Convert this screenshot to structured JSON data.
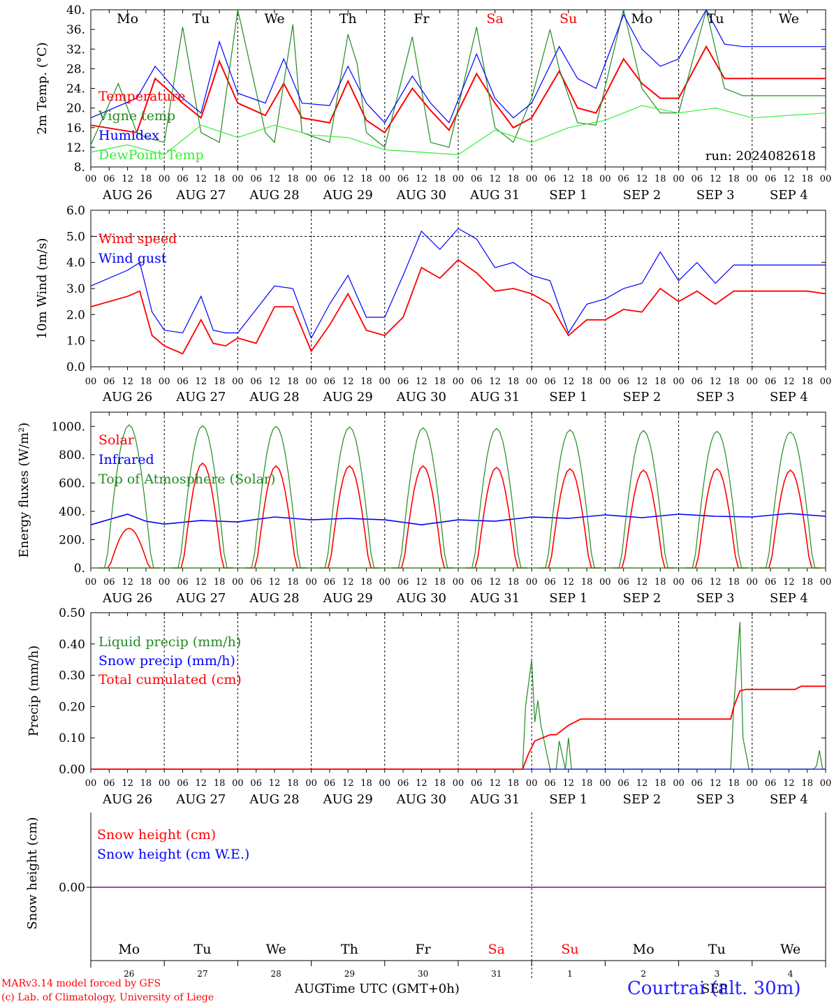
{
  "footer": {
    "credit_line1": "MARv3.14 model forced by GFS",
    "credit_line2": "(c) Lab. of Climatology, University of Liege",
    "x_axis_title": "Time UTC (GMT+0h)",
    "month_left": "AUG",
    "month_right": "SEP",
    "station": "Courtrai (alt. 30m)"
  },
  "chart_data": [
    {
      "type": "line",
      "title": "",
      "ylabel": "2m Temp. (°C)",
      "ylim": [
        8,
        40
      ],
      "yticks": [
        "8.",
        "12.",
        "16.",
        "20.",
        "24.",
        "28.",
        "32.",
        "36.",
        "40."
      ],
      "day_labels": [
        "Mo",
        "Tu",
        "We",
        "Th",
        "Fr",
        "Sa",
        "Su",
        "Mo",
        "Tu",
        "We"
      ],
      "weekend_color": "#ff0000",
      "date_labels": [
        "AUG 26",
        "AUG 27",
        "AUG 28",
        "AUG 29",
        "AUG 30",
        "AUG 31",
        "SEP  1",
        "SEP  2",
        "SEP  3",
        "SEP  4"
      ],
      "hour_ticks": [
        "00",
        "06",
        "12",
        "18"
      ],
      "annotation": "run: 2024082618",
      "x_unit": "hours since AUG 26 00 UTC",
      "series": [
        {
          "name": "Temperature",
          "color": "#ff0000",
          "x": [
            0,
            15,
            21,
            30,
            36,
            42,
            48,
            57,
            63,
            69,
            78,
            84,
            90,
            96,
            105,
            111,
            117,
            126,
            132,
            138,
            144,
            153,
            159,
            165,
            174,
            180,
            186,
            192,
            201,
            207,
            213,
            222,
            228,
            234,
            240
          ],
          "values": [
            16.5,
            15,
            26,
            21,
            18,
            29.5,
            21,
            18.5,
            25,
            18,
            17,
            25.5,
            17.5,
            15,
            24,
            19.5,
            15.5,
            27,
            21,
            16,
            18,
            27.5,
            20,
            19,
            30,
            25,
            22,
            22,
            32.5,
            26,
            26,
            26,
            26,
            26,
            26
          ]
        },
        {
          "name": "Vigne temp",
          "color": "#228b22",
          "x": [
            0,
            9,
            15,
            18,
            24,
            30,
            36,
            42,
            48,
            57,
            60,
            66,
            69,
            78,
            84,
            87,
            90,
            96,
            105,
            111,
            117,
            126,
            132,
            138,
            144,
            150,
            153,
            159,
            165,
            174,
            180,
            186,
            192,
            201,
            207,
            213,
            222,
            228,
            234,
            240
          ],
          "values": [
            12.5,
            25,
            15,
            14,
            13,
            36.5,
            15,
            13,
            40,
            15,
            13,
            37,
            15,
            13,
            35,
            29,
            15,
            12,
            34.5,
            13,
            12,
            36.5,
            16,
            13,
            22,
            36,
            28,
            17,
            16.5,
            40,
            24,
            19,
            19,
            40,
            24,
            22.5,
            22.5,
            22.5,
            22.5,
            22.5
          ]
        },
        {
          "name": "Humidex",
          "color": "#0000ff",
          "x": [
            0,
            15,
            21,
            30,
            36,
            42,
            48,
            57,
            63,
            69,
            78,
            84,
            90,
            96,
            105,
            111,
            117,
            126,
            132,
            138,
            144,
            153,
            159,
            165,
            174,
            180,
            186,
            192,
            201,
            207,
            213,
            222,
            228,
            234,
            240
          ],
          "values": [
            18,
            22,
            28.5,
            22,
            19,
            33.5,
            23,
            21,
            30,
            21,
            20.5,
            28.5,
            21,
            17,
            26.5,
            21,
            17,
            31,
            22,
            18,
            21,
            32.5,
            26,
            24,
            39,
            32,
            28.5,
            30,
            40,
            33,
            32.5,
            32.5,
            32.5,
            32.5,
            32.5
          ]
        },
        {
          "name": "DewPoint Temp",
          "color": "#33ee33",
          "x": [
            0,
            12,
            24,
            36,
            48,
            60,
            72,
            84,
            96,
            108,
            120,
            132,
            144,
            156,
            168,
            180,
            192,
            204,
            216,
            228,
            240
          ],
          "values": [
            11,
            12.5,
            10.5,
            16.5,
            14,
            16.5,
            14.5,
            14,
            11.5,
            11,
            10.5,
            15.5,
            13,
            16,
            17.5,
            20.5,
            19,
            20,
            18,
            18.5,
            19
          ]
        }
      ]
    },
    {
      "type": "line",
      "title": "",
      "ylabel": "10m Wind (m/s)",
      "ylim": [
        0,
        6
      ],
      "yticks": [
        "0.0",
        "1.0",
        "2.0",
        "3.0",
        "4.0",
        "5.0",
        "6.0"
      ],
      "date_labels": [
        "AUG 26",
        "AUG 27",
        "AUG 28",
        "AUG 29",
        "AUG 30",
        "AUG 31",
        "SEP  1",
        "SEP  2",
        "SEP  3",
        "SEP  4"
      ],
      "hour_ticks": [
        "00",
        "06",
        "12",
        "18"
      ],
      "reference_line": 5.0,
      "x_unit": "hours since AUG 26 00 UTC",
      "series": [
        {
          "name": "Wind speed",
          "color": "#ff0000",
          "x": [
            0,
            12,
            16,
            20,
            24,
            30,
            36,
            40,
            44,
            48,
            54,
            60,
            66,
            72,
            78,
            84,
            90,
            96,
            102,
            108,
            114,
            120,
            126,
            132,
            138,
            144,
            150,
            156,
            162,
            168,
            174,
            180,
            186,
            192,
            198,
            204,
            210,
            216,
            222,
            228,
            234,
            240
          ],
          "values": [
            2.3,
            2.7,
            2.9,
            1.2,
            0.8,
            0.5,
            1.8,
            0.9,
            0.8,
            1.1,
            0.9,
            2.3,
            2.3,
            0.6,
            1.6,
            2.8,
            1.4,
            1.2,
            1.9,
            3.8,
            3.4,
            4.1,
            3.6,
            2.9,
            3.0,
            2.8,
            2.4,
            1.2,
            1.8,
            1.8,
            2.2,
            2.1,
            3.0,
            2.5,
            2.9,
            2.4,
            2.9,
            2.9,
            2.9,
            2.9,
            2.9,
            2.8
          ]
        },
        {
          "name": "Wind gust",
          "color": "#0000ff",
          "x": [
            0,
            12,
            16,
            20,
            24,
            30,
            36,
            40,
            44,
            48,
            54,
            60,
            66,
            72,
            78,
            84,
            90,
            96,
            102,
            108,
            114,
            120,
            126,
            132,
            138,
            144,
            150,
            156,
            162,
            168,
            174,
            180,
            186,
            192,
            198,
            204,
            210,
            216,
            222,
            228,
            234,
            240
          ],
          "values": [
            3.1,
            3.7,
            4.0,
            2.1,
            1.4,
            1.3,
            2.7,
            1.4,
            1.3,
            1.3,
            2.2,
            3.1,
            3.0,
            1.1,
            2.4,
            3.5,
            1.9,
            1.9,
            3.5,
            5.2,
            4.5,
            5.3,
            4.9,
            3.8,
            4.0,
            3.5,
            3.3,
            1.3,
            2.4,
            2.6,
            3.0,
            3.2,
            4.4,
            3.3,
            4.0,
            3.2,
            3.9,
            3.9,
            3.9,
            3.9,
            3.9,
            3.9
          ]
        }
      ]
    },
    {
      "type": "line",
      "title": "",
      "ylabel": "Energy fluxes (W/m²)",
      "ylim": [
        0,
        1100
      ],
      "yticks": [
        "0.",
        "200.",
        "400.",
        "600.",
        "800.",
        "1000."
      ],
      "date_labels": [
        "AUG 26",
        "AUG 27",
        "AUG 28",
        "AUG 29",
        "AUG 30",
        "AUG 31",
        "SEP  1",
        "SEP  2",
        "SEP  3",
        "SEP  4"
      ],
      "hour_ticks": [
        "00",
        "06",
        "12",
        "18"
      ],
      "x_unit": "hours since AUG 26 00 UTC",
      "series": [
        {
          "name": "Solar",
          "color": "#ff0000",
          "daily_peak": [
            280,
            740,
            720,
            720,
            720,
            710,
            700,
            690,
            700,
            690
          ]
        },
        {
          "name": "Infrared",
          "color": "#0000ff",
          "x": [
            0,
            12,
            18,
            24,
            36,
            48,
            60,
            72,
            84,
            96,
            108,
            120,
            132,
            144,
            156,
            168,
            180,
            192,
            204,
            216,
            228,
            240
          ],
          "values": [
            305,
            380,
            330,
            310,
            335,
            325,
            360,
            340,
            350,
            340,
            305,
            340,
            330,
            360,
            350,
            375,
            355,
            380,
            365,
            360,
            385,
            365
          ]
        },
        {
          "name": "Top of Atmosphere (Solar)",
          "color": "#228b22",
          "daily_peak": [
            1010,
            1005,
            1000,
            995,
            990,
            985,
            975,
            970,
            965,
            960
          ]
        }
      ]
    },
    {
      "type": "line",
      "title": "",
      "ylabel": "Precip (mm/h)",
      "ylim": [
        0,
        0.5
      ],
      "yticks": [
        "0.00",
        "0.10",
        "0.20",
        "0.30",
        "0.40",
        "0.50"
      ],
      "date_labels": [
        "AUG 26",
        "AUG 27",
        "AUG 28",
        "AUG 29",
        "AUG 30",
        "AUG 31",
        "SEP  1",
        "SEP  2",
        "SEP  3",
        "SEP  4"
      ],
      "hour_ticks": [
        "00",
        "06",
        "12",
        "18"
      ],
      "x_unit": "hours since AUG 26 00 UTC",
      "series": [
        {
          "name": "Liquid precip (mm/h)",
          "color": "#228b22",
          "x": [
            0,
            141,
            142,
            144,
            145,
            146,
            147,
            150,
            152,
            153,
            155,
            156,
            157,
            160,
            162,
            163,
            166,
            167,
            168,
            209,
            210,
            212,
            213,
            215,
            216,
            236,
            237,
            238,
            239,
            240
          ],
          "values": [
            0,
            0,
            0.2,
            0.35,
            0.15,
            0.22,
            0.14,
            0,
            0,
            0.09,
            0,
            0.1,
            0,
            0,
            0,
            0,
            0,
            0,
            0,
            0,
            0.2,
            0.47,
            0.1,
            0,
            0,
            0,
            0.01,
            0.06,
            0,
            0
          ]
        },
        {
          "name": "Snow precip (mm/h)",
          "color": "#0000ff",
          "x": [
            0,
            240
          ],
          "values": [
            0,
            0
          ]
        },
        {
          "name": "Total cumulated (cm)",
          "color": "#ff0000",
          "x": [
            0,
            141,
            143,
            145,
            150,
            152,
            156,
            160,
            162,
            209,
            210,
            212,
            214,
            220,
            230,
            232,
            240
          ],
          "values": [
            0,
            0,
            0.05,
            0.09,
            0.11,
            0.11,
            0.14,
            0.16,
            0.16,
            0.16,
            0.2,
            0.25,
            0.255,
            0.255,
            0.255,
            0.265,
            0.265
          ]
        }
      ]
    },
    {
      "type": "line",
      "title": "",
      "ylabel": "Snow height (cm)",
      "ytick": "0.00",
      "day_labels": [
        "Mo",
        "Tu",
        "We",
        "Th",
        "Fr",
        "Sa",
        "Su",
        "Mo",
        "Tu",
        "We"
      ],
      "day_numbers": [
        "26",
        "27",
        "28",
        "29",
        "30",
        "31",
        "1",
        "2",
        "3",
        "4"
      ],
      "x_unit": "hours since AUG 26 00 UTC",
      "series": [
        {
          "name": "Snow height (cm)",
          "color": "#ff0000",
          "x": [
            0,
            240
          ],
          "values": [
            0,
            0
          ]
        },
        {
          "name": "Snow height (cm W.E.)",
          "color": "#0000ff",
          "x": [
            0,
            240
          ],
          "values": [
            0,
            0
          ]
        }
      ]
    }
  ]
}
